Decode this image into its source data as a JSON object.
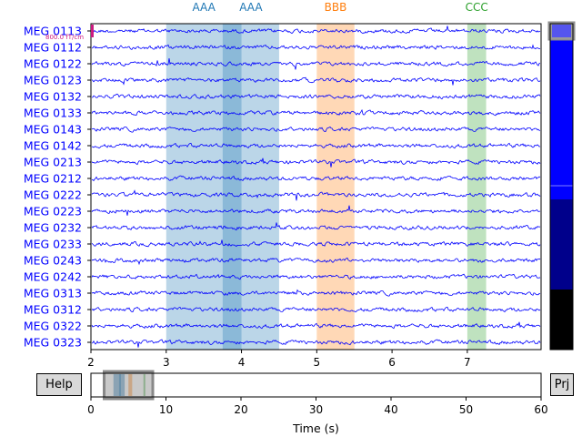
{
  "buttons": {
    "help_label": "Help",
    "proj_label": "Prj"
  },
  "chart_data": {
    "type": "line",
    "channels": [
      "MEG 0113",
      "MEG 0112",
      "MEG 0122",
      "MEG 0123",
      "MEG 0132",
      "MEG 0133",
      "MEG 0143",
      "MEG 0142",
      "MEG 0213",
      "MEG 0212",
      "MEG 0222",
      "MEG 0223",
      "MEG 0232",
      "MEG 0233",
      "MEG 0243",
      "MEG 0242",
      "MEG 0313",
      "MEG 0312",
      "MEG 0322",
      "MEG 0323"
    ],
    "channel_color": "#0000ff",
    "xlim": [
      2,
      7.98
    ],
    "xticks": [
      "2",
      "3",
      "4",
      "5",
      "6",
      "7"
    ],
    "scale_bar_label": "800.0 fT/cm",
    "scale_bar_color": "#cc1a80",
    "annotations": [
      {
        "label": "AAA",
        "start": 3.0,
        "end": 4.0,
        "color": "#1f77b4"
      },
      {
        "label": "AAA",
        "start": 3.75,
        "end": 4.5,
        "color": "#1f77b4"
      },
      {
        "label": "BBB",
        "start": 5.0,
        "end": 5.5,
        "color": "#ff7f0e"
      },
      {
        "label": "CCC",
        "start": 7.0,
        "end": 7.25,
        "color": "#2ca02c"
      }
    ],
    "overview": {
      "xlim": [
        0,
        60
      ],
      "xticks": [
        "0",
        "10",
        "20",
        "30",
        "40",
        "50",
        "60"
      ],
      "xlabel": "Time (s)",
      "window": [
        2,
        8
      ]
    }
  }
}
